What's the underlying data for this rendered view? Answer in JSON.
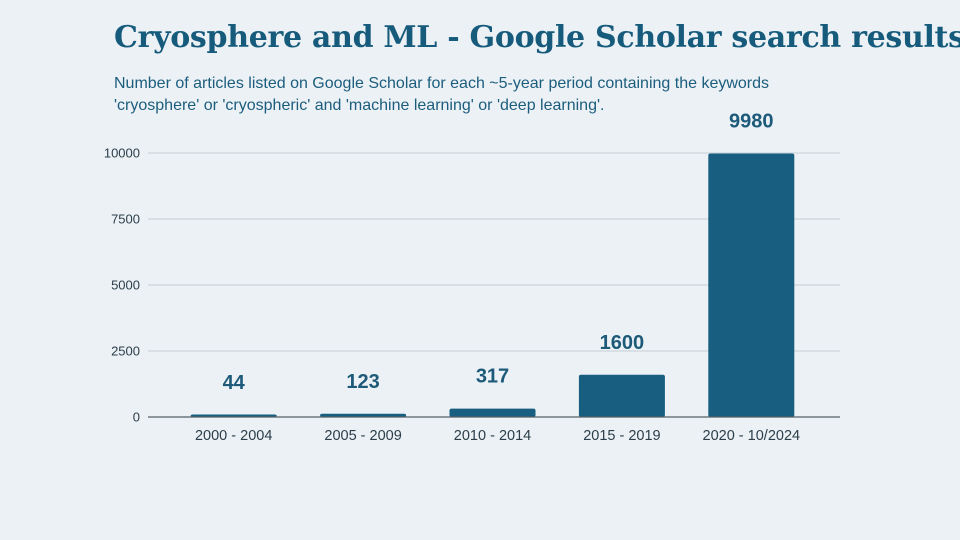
{
  "chart_data": {
    "type": "bar",
    "title": "Cryosphere and ML - Google Scholar search results",
    "subtitle": "Number of articles listed on Google Scholar for each ~5-year period containing the keywords 'cryosphere' or 'cryospheric' and 'machine learning' or 'deep learning'.",
    "xlabel": "",
    "ylabel": "",
    "categories": [
      "2000 - 2004",
      "2005 - 2009",
      "2010 - 2014",
      "2015 - 2019",
      "2020 - 10/2024"
    ],
    "values": [
      44,
      123,
      317,
      1600,
      9980
    ],
    "data_labels": [
      "44",
      "123",
      "317",
      "1600",
      "9980"
    ],
    "yticks": [
      "0",
      "2500",
      "5000",
      "7500",
      "10000"
    ],
    "ylim": [
      0,
      10000
    ],
    "grid": true,
    "legend": "none",
    "bar_color": "#175e80"
  }
}
